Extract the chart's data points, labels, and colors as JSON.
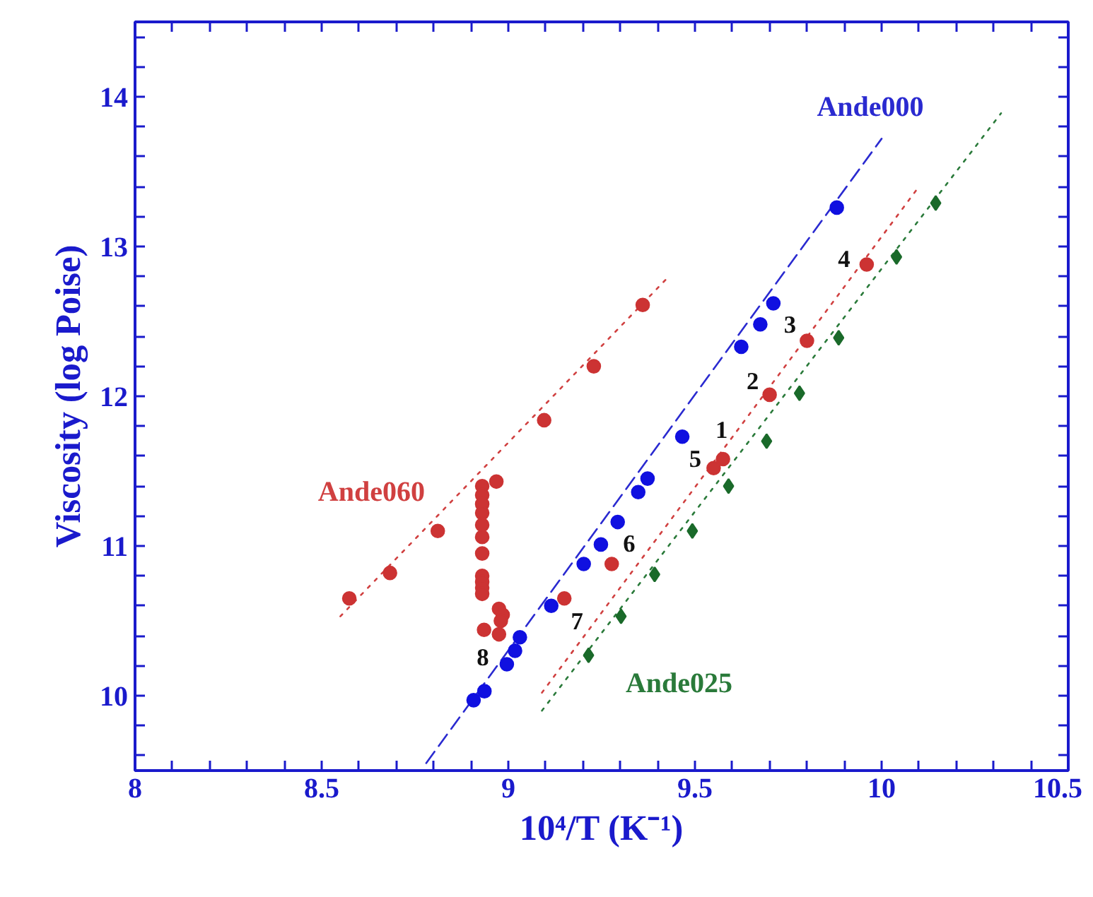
{
  "chart_data": {
    "type": "scatter",
    "xlabel": "10⁴/T (K⁻¹)",
    "ylabel": "Viscosity (log Poise)",
    "xlim": [
      8,
      10.5
    ],
    "ylim": [
      9.5,
      14.5
    ],
    "xticks": [
      8,
      {
        "value": 8.1,
        "label": null
      },
      {
        "value": 8.2,
        "label": null
      },
      {
        "value": 8.3,
        "label": null
      },
      {
        "value": 8.4,
        "label": null
      },
      8.5,
      {
        "value": 8.6,
        "label": null
      },
      {
        "value": 8.7,
        "label": null
      },
      {
        "value": 8.8,
        "label": null
      },
      {
        "value": 8.9,
        "label": null
      },
      9,
      {
        "value": 9.1,
        "label": null
      },
      {
        "value": 9.2,
        "label": null
      },
      {
        "value": 9.3,
        "label": null
      },
      {
        "value": 9.4,
        "label": null
      },
      9.5,
      {
        "value": 9.6,
        "label": null
      },
      {
        "value": 9.7,
        "label": null
      },
      {
        "value": 9.8,
        "label": null
      },
      {
        "value": 9.9,
        "label": null
      },
      10,
      {
        "value": 10.1,
        "label": null
      },
      {
        "value": 10.2,
        "label": null
      },
      {
        "value": 10.3,
        "label": null
      },
      {
        "value": 10.4,
        "label": null
      },
      10.5
    ],
    "yticks": [
      {
        "value": 9.6,
        "label": null
      },
      {
        "value": 9.8,
        "label": null
      },
      10,
      {
        "value": 10.2,
        "label": null
      },
      {
        "value": 10.4,
        "label": null
      },
      {
        "value": 10.6,
        "label": null
      },
      {
        "value": 10.8,
        "label": null
      },
      11,
      {
        "value": 11.2,
        "label": null
      },
      {
        "value": 11.4,
        "label": null
      },
      {
        "value": 11.6,
        "label": null
      },
      {
        "value": 11.8,
        "label": null
      },
      12,
      {
        "value": 12.2,
        "label": null
      },
      {
        "value": 12.4,
        "label": null
      },
      {
        "value": 12.6,
        "label": null
      },
      {
        "value": 12.8,
        "label": null
      },
      13,
      {
        "value": 13.2,
        "label": null
      },
      {
        "value": 13.4,
        "label": null
      },
      {
        "value": 13.6,
        "label": null
      },
      {
        "value": 13.8,
        "label": null
      },
      14,
      {
        "value": 14.2,
        "label": null
      },
      {
        "value": 14.4,
        "label": null
      }
    ],
    "grid": false,
    "legend": false,
    "series": [
      {
        "type": "line",
        "name": "Ande000",
        "color": "#2a2ad0",
        "marker": "none",
        "line_style": "dashed",
        "x": [
          8.78,
          10.0
        ],
        "values": [
          9.55,
          13.72
        ]
      },
      {
        "type": "line",
        "name": "Ande060",
        "color": "#d04040",
        "marker": "none",
        "line_style": "dotted",
        "x": [
          8.55,
          9.43
        ],
        "values": [
          10.53,
          12.8
        ]
      },
      {
        "type": "line",
        "color": "#d04040",
        "marker": "none",
        "line_style": "dotted",
        "x": [
          9.09,
          10.1
        ],
        "values": [
          10.02,
          13.4
        ]
      },
      {
        "type": "line",
        "name": "Ande025",
        "color": "#2a7a3a",
        "marker": "none",
        "line_style": "dotted",
        "x": [
          9.09,
          10.32
        ],
        "values": [
          9.9,
          13.89
        ]
      },
      {
        "color": "#1010e0",
        "marker": "circle",
        "x": [
          8.907,
          8.936,
          8.996,
          9.018,
          9.031,
          9.115,
          9.202,
          9.248,
          9.293,
          9.348,
          9.373,
          9.466,
          9.624,
          9.675,
          9.71,
          9.88
        ],
        "values": [
          9.97,
          10.03,
          10.21,
          10.3,
          10.39,
          10.6,
          10.88,
          11.01,
          11.16,
          11.36,
          11.45,
          11.73,
          12.33,
          12.48,
          12.62,
          13.26
        ]
      },
      {
        "color": "#cc3333",
        "marker": "circle",
        "x": [
          8.574,
          8.683,
          8.811,
          8.968,
          9.096,
          9.229,
          9.36,
          8.93,
          8.93,
          8.93,
          8.93,
          8.93,
          8.93,
          8.93,
          8.93,
          8.93,
          8.93,
          8.93,
          8.975,
          8.985,
          8.98,
          8.935,
          8.975,
          9.15,
          9.277,
          9.55,
          9.575,
          9.7,
          9.8,
          9.96
        ],
        "values": [
          10.65,
          10.82,
          11.1,
          11.43,
          11.84,
          12.2,
          12.61,
          11.4,
          11.34,
          11.28,
          11.22,
          11.14,
          11.06,
          10.95,
          10.8,
          10.76,
          10.72,
          10.68,
          10.58,
          10.54,
          10.5,
          10.44,
          10.41,
          10.65,
          10.88,
          11.52,
          11.58,
          12.01,
          12.37,
          12.88
        ]
      },
      {
        "color": "#1a6a2a",
        "marker": "diamond",
        "x": [
          9.215,
          9.302,
          9.392,
          9.493,
          9.59,
          9.692,
          9.78,
          9.885,
          10.04,
          10.145
        ],
        "values": [
          10.27,
          10.53,
          10.81,
          11.1,
          11.4,
          11.7,
          12.02,
          12.39,
          12.93,
          13.29
        ]
      }
    ],
    "annotations": [
      {
        "text": "1",
        "x": 9.575,
        "y": 11.58
      },
      {
        "text": "2",
        "x": 9.7,
        "y": 12.01
      },
      {
        "text": "3",
        "x": 9.8,
        "y": 12.37
      },
      {
        "text": "4",
        "x": 9.96,
        "y": 12.88
      },
      {
        "text": "5",
        "x": 9.55,
        "y": 11.52
      },
      {
        "text": "6",
        "x": 9.248,
        "y": 11.01
      },
      {
        "text": "7",
        "x": 9.15,
        "y": 10.65
      },
      {
        "text": "8",
        "x": 8.996,
        "y": 10.21
      }
    ]
  }
}
